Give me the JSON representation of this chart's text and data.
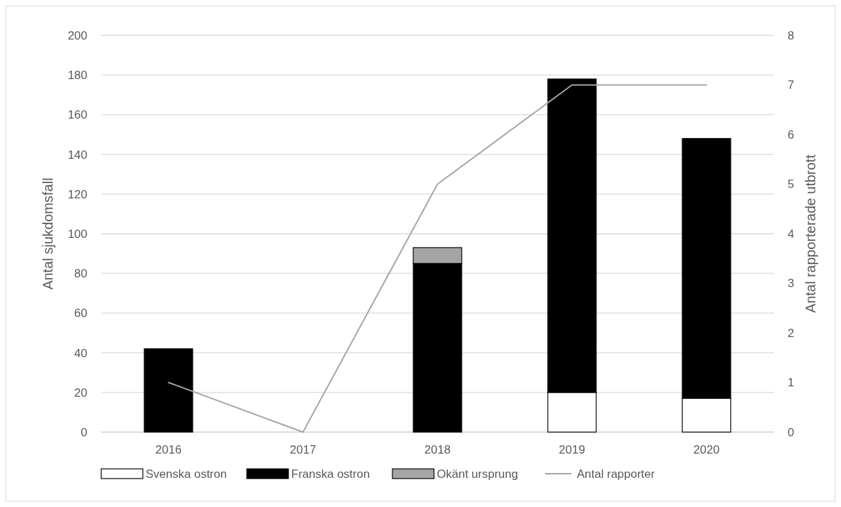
{
  "chart_data": {
    "type": "bar",
    "stacked": true,
    "categories": [
      "2016",
      "2017",
      "2018",
      "2019",
      "2020"
    ],
    "ylabel": "Antal sjukdomsfall",
    "y2label": "Antal rapporterade utbrott",
    "ylim": [
      0,
      200
    ],
    "yticks": [
      0,
      20,
      40,
      60,
      80,
      100,
      120,
      140,
      160,
      180,
      200
    ],
    "y2lim": [
      0,
      8
    ],
    "y2ticks": [
      0,
      1,
      2,
      3,
      4,
      5,
      6,
      7,
      8
    ],
    "grid": "y",
    "legend": "bottom",
    "series": [
      {
        "name": "Svenska ostron",
        "color": "#ffffff",
        "values": [
          0,
          0,
          0,
          20,
          17
        ]
      },
      {
        "name": "Franska ostron",
        "color": "#000000",
        "values": [
          42,
          0,
          85,
          158,
          131
        ]
      },
      {
        "name": "Okänt ursprung",
        "color": "#a5a5a5",
        "values": [
          0,
          0,
          8,
          0,
          0
        ]
      },
      {
        "name": "Antal rapporter",
        "type": "line",
        "axis": "y2",
        "color": "#a5a5a5",
        "values": [
          1,
          0,
          5,
          7,
          7
        ]
      }
    ]
  }
}
